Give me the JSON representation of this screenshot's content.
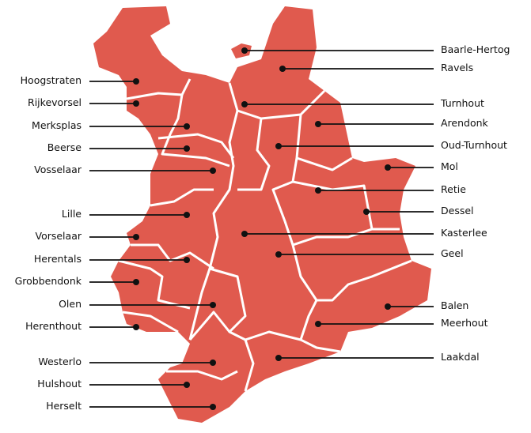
{
  "map": {
    "fill_color": "#e05a4e",
    "border_color": "#ffffff",
    "marker_color": "#111111",
    "left_labels": [
      "Hoogstraten",
      "Rijkevorsel",
      "Merksplas",
      "Beerse",
      "Vosselaar",
      "Lille",
      "Vorselaar",
      "Herentals",
      "Grobbendonk",
      "Olen",
      "Herenthout",
      "Westerlo",
      "Hulshout",
      "Herselt"
    ],
    "right_labels": [
      "Baarle-Hertog",
      "Ravels",
      "Turnhout",
      "Arendonk",
      "Oud-Turnhout",
      "Mol",
      "Retie",
      "Dessel",
      "Kasterlee",
      "Geel",
      "Balen",
      "Meerhout",
      "Laakdal"
    ]
  }
}
